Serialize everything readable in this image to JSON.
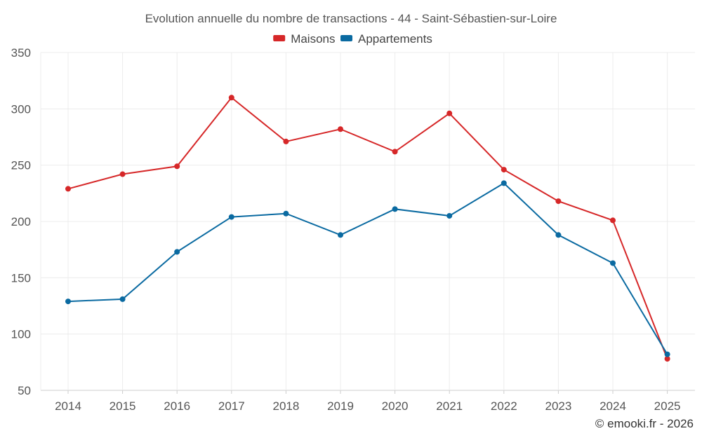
{
  "chart_data": {
    "type": "line",
    "title": "Evolution annuelle du nombre de transactions - 44 - Saint-Sébastien-sur-Loire",
    "xlabel": "",
    "ylabel": "",
    "categories": [
      "2014",
      "2015",
      "2016",
      "2017",
      "2018",
      "2019",
      "2020",
      "2021",
      "2022",
      "2023",
      "2024",
      "2025"
    ],
    "ylim": [
      50,
      350
    ],
    "yticks": [
      50,
      100,
      150,
      200,
      250,
      300,
      350
    ],
    "grid": true,
    "legend_position": "top-center",
    "series": [
      {
        "name": "Maisons",
        "color": "#d62728",
        "values": [
          229,
          242,
          249,
          310,
          271,
          282,
          262,
          296,
          246,
          218,
          201,
          78
        ]
      },
      {
        "name": "Appartements",
        "color": "#0a6aa1",
        "values": [
          129,
          131,
          173,
          204,
          207,
          188,
          211,
          205,
          234,
          188,
          163,
          82
        ]
      }
    ]
  },
  "footer": {
    "copyright": "© emooki.fr - 2026"
  }
}
